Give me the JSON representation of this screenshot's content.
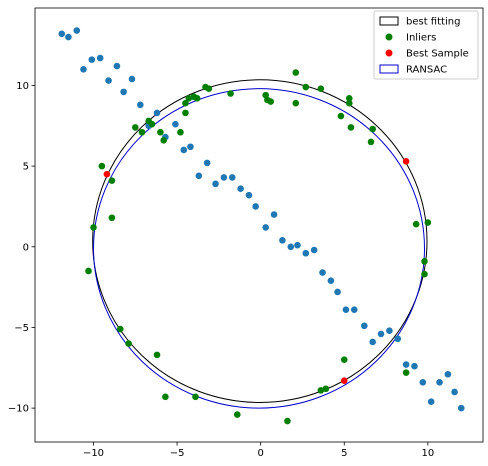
{
  "chart_data": {
    "type": "scatter",
    "title": "",
    "xlabel": "",
    "ylabel": "",
    "xlim": [
      -13.5,
      13.3
    ],
    "ylim": [
      -12.1,
      14.8
    ],
    "x_ticks": [
      -10,
      -5,
      0,
      5,
      10
    ],
    "y_ticks": [
      -10,
      -5,
      0,
      5,
      10
    ],
    "x_tick_labels": [
      "−10",
      "−5",
      "0",
      "5",
      "10"
    ],
    "y_tick_labels": [
      "−10",
      "−5",
      "0",
      "5",
      "10"
    ],
    "grid": false,
    "legend_position": "top-right",
    "legend": [
      {
        "label": "best fitting",
        "kind": "rect",
        "edge": "#000000",
        "face": "#ffffff"
      },
      {
        "label": "Inliers",
        "kind": "dot",
        "color": "#008000"
      },
      {
        "label": "Best Sample",
        "kind": "dot",
        "color": "#ff0000"
      },
      {
        "label": "RANSAC",
        "kind": "rect",
        "edge": "#0000cd",
        "face": "#ffffff"
      }
    ],
    "circles": [
      {
        "name": "best fitting",
        "cx": -0.05,
        "cy": 0.35,
        "r": 10.0,
        "color": "#000000"
      },
      {
        "name": "RANSAC",
        "cx": -0.1,
        "cy": -0.1,
        "r": 9.9,
        "color": "#0000cd"
      }
    ],
    "series": [
      {
        "name": "Outliers",
        "color": "#1f77b4",
        "points": [
          [
            -11.9,
            13.2
          ],
          [
            -11.5,
            13.0
          ],
          [
            -11.0,
            13.4
          ],
          [
            -10.6,
            11.0
          ],
          [
            -10.1,
            11.6
          ],
          [
            -9.6,
            11.7
          ],
          [
            -9.1,
            10.3
          ],
          [
            -8.6,
            11.2
          ],
          [
            -8.2,
            9.6
          ],
          [
            -7.7,
            10.4
          ],
          [
            -7.2,
            8.8
          ],
          [
            -6.7,
            7.5
          ],
          [
            -6.2,
            8.3
          ],
          [
            -5.7,
            6.8
          ],
          [
            -5.1,
            7.6
          ],
          [
            -4.6,
            6.0
          ],
          [
            -4.2,
            6.2
          ],
          [
            -3.7,
            4.4
          ],
          [
            -3.2,
            5.2
          ],
          [
            -2.7,
            3.9
          ],
          [
            -2.2,
            4.3
          ],
          [
            -1.7,
            4.3
          ],
          [
            -1.2,
            3.6
          ],
          [
            -0.7,
            3.2
          ],
          [
            -0.3,
            2.5
          ],
          [
            0.3,
            1.2
          ],
          [
            0.8,
            2.0
          ],
          [
            1.3,
            0.4
          ],
          [
            1.8,
            0.0
          ],
          [
            2.2,
            0.1
          ],
          [
            2.7,
            -0.4
          ],
          [
            3.2,
            -0.2
          ],
          [
            3.7,
            -1.6
          ],
          [
            4.2,
            -2.1
          ],
          [
            4.6,
            -2.8
          ],
          [
            5.1,
            -3.9
          ],
          [
            5.6,
            -3.9
          ],
          [
            6.2,
            -4.9
          ],
          [
            6.7,
            -5.9
          ],
          [
            7.2,
            -5.4
          ],
          [
            7.7,
            -5.2
          ],
          [
            8.2,
            -5.7
          ],
          [
            8.7,
            -7.3
          ],
          [
            9.2,
            -7.4
          ],
          [
            9.7,
            -8.4
          ],
          [
            10.2,
            -9.6
          ],
          [
            10.7,
            -8.4
          ],
          [
            11.2,
            -7.9
          ],
          [
            11.6,
            -9.0
          ],
          [
            12.0,
            -10.0
          ]
        ]
      },
      {
        "name": "Inliers",
        "color": "#008000",
        "points": [
          [
            2.1,
            10.8
          ],
          [
            -3.1,
            9.8
          ],
          [
            2.7,
            9.9
          ],
          [
            -3.3,
            9.9
          ],
          [
            3.6,
            9.8
          ],
          [
            -4.0,
            9.3
          ],
          [
            -3.8,
            9.2
          ],
          [
            -1.8,
            9.5
          ],
          [
            0.3,
            9.4
          ],
          [
            0.4,
            9.1
          ],
          [
            0.6,
            9.0
          ],
          [
            -4.5,
            8.9
          ],
          [
            -4.3,
            9.2
          ],
          [
            5.3,
            9.2
          ],
          [
            5.3,
            8.9
          ],
          [
            2.1,
            8.9
          ],
          [
            -4.5,
            8.3
          ],
          [
            4.8,
            8.1
          ],
          [
            -7.5,
            7.4
          ],
          [
            -6.5,
            7.6
          ],
          [
            -6.7,
            7.8
          ],
          [
            5.4,
            7.4
          ],
          [
            -7.1,
            7.1
          ],
          [
            6.7,
            7.3
          ],
          [
            -6.0,
            7.1
          ],
          [
            -4.8,
            7.1
          ],
          [
            -5.8,
            6.6
          ],
          [
            6.6,
            6.5
          ],
          [
            -9.5,
            5.0
          ],
          [
            -8.9,
            4.1
          ],
          [
            -8.9,
            1.8
          ],
          [
            9.3,
            1.4
          ],
          [
            10.0,
            1.5
          ],
          [
            -10.0,
            1.2
          ],
          [
            9.8,
            -0.9
          ],
          [
            -10.3,
            -1.5
          ],
          [
            9.8,
            -1.7
          ],
          [
            -8.4,
            -5.1
          ],
          [
            -7.9,
            -6.0
          ],
          [
            -6.2,
            -6.7
          ],
          [
            5.0,
            -7.0
          ],
          [
            8.7,
            -7.8
          ],
          [
            3.9,
            -8.8
          ],
          [
            3.6,
            -8.9
          ],
          [
            -5.7,
            -9.3
          ],
          [
            -3.9,
            -9.3
          ],
          [
            -1.4,
            -10.4
          ],
          [
            1.6,
            -10.8
          ]
        ]
      },
      {
        "name": "Best Sample",
        "color": "#ff0000",
        "points": [
          [
            -9.2,
            4.5
          ],
          [
            8.7,
            5.3
          ],
          [
            5.0,
            -8.3
          ]
        ]
      }
    ]
  }
}
